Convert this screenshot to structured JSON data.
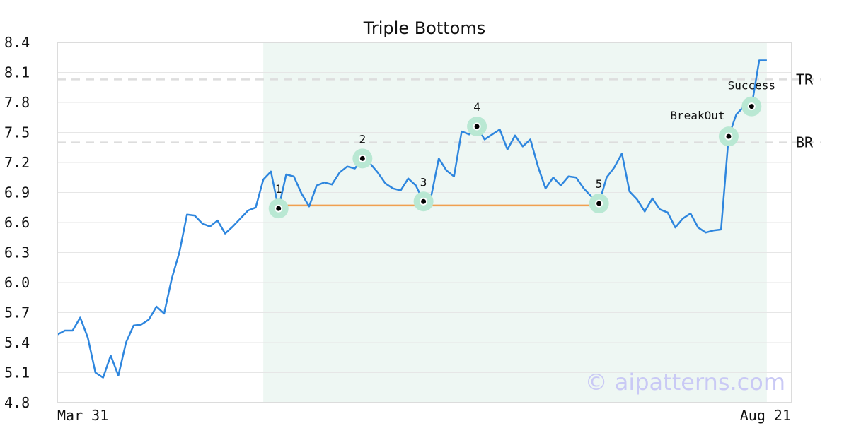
{
  "chart_data": {
    "type": "line",
    "title": "Triple Bottoms",
    "x_start_label": "Mar 31",
    "x_end_label": "Aug 21",
    "ylim": [
      4.8,
      8.4
    ],
    "yticks": [
      "4.8",
      "5.1",
      "5.4",
      "5.7",
      "6.0",
      "6.3",
      "6.6",
      "6.9",
      "7.2",
      "7.5",
      "7.8",
      "8.1",
      "8.4"
    ],
    "grid": true,
    "series_color": "#2e86de",
    "pattern_region": {
      "start_index": 27,
      "end_index": 93,
      "color": "#eef7f3"
    },
    "horizontal_levels": [
      {
        "label": "TR",
        "value": 8.03
      },
      {
        "label": "BR",
        "value": 7.4
      }
    ],
    "neckline": {
      "start_index": 29,
      "end_index": 71,
      "value": 6.77,
      "color": "#f0a050"
    },
    "points": [
      {
        "label": "1",
        "index": 29,
        "value": 6.74
      },
      {
        "label": "2",
        "index": 40,
        "value": 7.24
      },
      {
        "label": "3",
        "index": 48,
        "value": 6.81
      },
      {
        "label": "4",
        "index": 55,
        "value": 7.56
      },
      {
        "label": "5",
        "index": 71,
        "value": 6.79
      },
      {
        "label": "BreakOut",
        "index": 88,
        "value": 7.46
      },
      {
        "label": "Success",
        "index": 91,
        "value": 7.76
      }
    ],
    "values": [
      5.48,
      5.52,
      5.52,
      5.65,
      5.45,
      5.1,
      5.05,
      5.27,
      5.07,
      5.4,
      5.57,
      5.58,
      5.63,
      5.76,
      5.69,
      6.04,
      6.3,
      6.68,
      6.67,
      6.59,
      6.56,
      6.62,
      6.49,
      6.56,
      6.64,
      6.72,
      6.75,
      7.03,
      7.11,
      6.74,
      7.08,
      7.06,
      6.89,
      6.76,
      6.97,
      7.0,
      6.98,
      7.1,
      7.16,
      7.14,
      7.24,
      7.19,
      7.1,
      6.99,
      6.94,
      6.92,
      7.04,
      6.97,
      6.81,
      6.86,
      7.24,
      7.12,
      7.06,
      7.51,
      7.48,
      7.56,
      7.43,
      7.48,
      7.53,
      7.33,
      7.47,
      7.36,
      7.43,
      7.16,
      6.94,
      7.05,
      6.97,
      7.06,
      7.05,
      6.94,
      6.86,
      6.79,
      7.05,
      7.15,
      7.29,
      6.91,
      6.83,
      6.71,
      6.84,
      6.73,
      6.7,
      6.55,
      6.64,
      6.69,
      6.55,
      6.5,
      6.52,
      6.53,
      7.46,
      7.68,
      7.76,
      7.76,
      8.22,
      8.22
    ],
    "watermark": "© aipatterns.com"
  }
}
